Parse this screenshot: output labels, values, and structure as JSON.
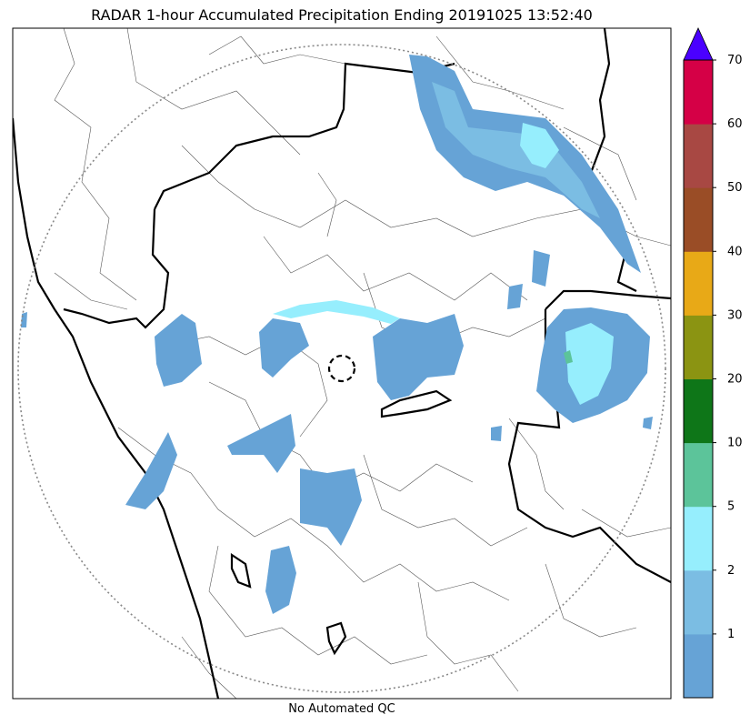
{
  "title": "RADAR 1-hour Accumulated Precipitation Ending 20191025 13:52:40",
  "footer": "No Automated QC",
  "colorbar": {
    "levels": [
      {
        "label": "",
        "color": "#66a3d6"
      },
      {
        "label": "1",
        "color": "#7bbde3"
      },
      {
        "label": "2",
        "color": "#96eefd"
      },
      {
        "label": "5",
        "color": "#5cc49a"
      },
      {
        "label": "10",
        "color": "#0e7618"
      },
      {
        "label": "20",
        "color": "#8b9412"
      },
      {
        "label": "30",
        "color": "#e8a917"
      },
      {
        "label": "40",
        "color": "#9a4d26"
      },
      {
        "label": "50",
        "color": "#a84843"
      },
      {
        "label": "60",
        "color": "#d50046"
      }
    ],
    "top_label": "70",
    "extend_color": "#4a00ff"
  },
  "colors": {
    "rain_light": "#66a3d6",
    "rain_mid": "#7bbde3",
    "rain_high": "#96eefd",
    "rain_peak": "#5cc49a",
    "range_ring": "#888888",
    "border": "#000000"
  }
}
